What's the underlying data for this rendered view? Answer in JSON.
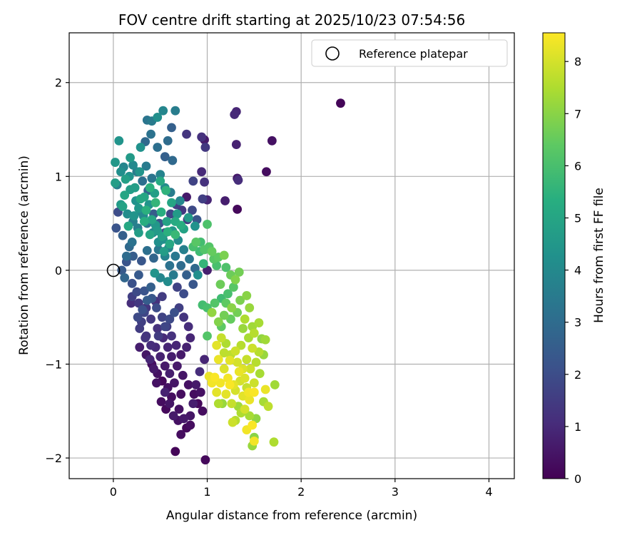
{
  "chart_data": {
    "type": "scatter",
    "title": "FOV centre drift starting at 2025/10/23 07:54:56",
    "xlabel": "Angular distance from reference (arcmin)",
    "ylabel": "Rotation from reference (arcmin)",
    "xlim": [
      -0.47,
      4.27
    ],
    "ylim": [
      -2.22,
      2.53
    ],
    "xticks": [
      0,
      1,
      2,
      3,
      4
    ],
    "xtick_labels": [
      "0",
      "1",
      "2",
      "3",
      "4"
    ],
    "yticks": [
      -2,
      -1,
      0,
      1,
      2
    ],
    "ytick_labels": [
      "−2",
      "−1",
      "0",
      "1",
      "2"
    ],
    "grid": true,
    "legend": {
      "position": "top-right",
      "entries": [
        "Reference platepar"
      ]
    },
    "colorbar": {
      "label": "Hours from first FF file",
      "colormap": "viridis",
      "range": [
        0,
        8.55
      ],
      "ticks": [
        0,
        1,
        2,
        3,
        4,
        5,
        6,
        7,
        8
      ],
      "tick_labels": [
        "0",
        "1",
        "2",
        "3",
        "4",
        "5",
        "6",
        "7",
        "8"
      ]
    },
    "reference_point": {
      "x": 0,
      "y": 0
    },
    "points": [
      [
        2.42,
        1.78,
        0.1
      ],
      [
        1.69,
        1.38,
        0.4
      ],
      [
        1.63,
        1.05,
        0.3
      ],
      [
        1.32,
        0.65,
        0.2
      ],
      [
        1.31,
        1.69,
        0.9
      ],
      [
        1.29,
        1.66,
        1.0
      ],
      [
        1.31,
        1.34,
        0.8
      ],
      [
        1.32,
        0.98,
        0.6
      ],
      [
        1.33,
        0.96,
        1.1
      ],
      [
        1.19,
        0.74,
        0.7
      ],
      [
        1.0,
        0.75,
        0.9
      ],
      [
        0.94,
        1.42,
        1.2
      ],
      [
        0.97,
        1.39,
        0.6
      ],
      [
        0.98,
        1.31,
        1.4
      ],
      [
        0.94,
        1.05,
        1.0
      ],
      [
        0.97,
        0.94,
        1.2
      ],
      [
        0.95,
        0.76,
        1.6
      ],
      [
        0.85,
        0.95,
        1.7
      ],
      [
        0.78,
        0.78,
        0.6
      ],
      [
        0.78,
        1.45,
        1.3
      ],
      [
        0.62,
        1.52,
        2.6
      ],
      [
        0.66,
        1.7,
        3.6
      ],
      [
        0.53,
        1.7,
        3.9
      ],
      [
        0.47,
        1.63,
        4.2
      ],
      [
        0.41,
        1.59,
        3.5
      ],
      [
        0.36,
        1.6,
        3.3
      ],
      [
        0.4,
        1.45,
        3.2
      ],
      [
        0.34,
        1.37,
        2.9
      ],
      [
        0.47,
        1.31,
        3.1
      ],
      [
        0.58,
        1.38,
        3.0
      ],
      [
        0.55,
        1.21,
        2.6
      ],
      [
        0.63,
        1.17,
        2.9
      ],
      [
        0.29,
        1.31,
        4.3
      ],
      [
        0.18,
        1.2,
        4.6
      ],
      [
        0.06,
        1.38,
        4.4
      ],
      [
        0.02,
        1.15,
        4.5
      ],
      [
        0.08,
        1.05,
        4.2
      ],
      [
        0.13,
        0.97,
        4.8
      ],
      [
        0.02,
        0.93,
        4.7
      ],
      [
        0.04,
        0.91,
        3.7
      ],
      [
        0.21,
        1.12,
        4.0
      ],
      [
        0.28,
        1.05,
        4.4
      ],
      [
        0.35,
        1.11,
        3.5
      ],
      [
        0.41,
        0.98,
        3.3
      ],
      [
        0.5,
        1.02,
        3.8
      ],
      [
        0.55,
        0.88,
        4.1
      ],
      [
        0.61,
        0.83,
        3.6
      ],
      [
        0.71,
        0.74,
        3.9
      ],
      [
        0.8,
        0.56,
        4.6
      ],
      [
        0.87,
        0.47,
        4.3
      ],
      [
        0.75,
        0.44,
        4.9
      ],
      [
        0.66,
        0.52,
        5.2
      ],
      [
        0.58,
        0.41,
        5.4
      ],
      [
        0.52,
        0.36,
        4.8
      ],
      [
        0.45,
        0.48,
        4.5
      ],
      [
        0.39,
        0.38,
        5.0
      ],
      [
        0.33,
        0.52,
        5.3
      ],
      [
        0.27,
        0.4,
        4.7
      ],
      [
        0.22,
        0.58,
        4.4
      ],
      [
        0.16,
        0.47,
        5.1
      ],
      [
        0.1,
        0.68,
        4.9
      ],
      [
        0.05,
        0.62,
        2.0
      ],
      [
        0.03,
        0.45,
        2.2
      ],
      [
        0.1,
        0.37,
        2.6
      ],
      [
        0.17,
        0.25,
        2.9
      ],
      [
        0.21,
        0.15,
        2.5
      ],
      [
        0.14,
        0.09,
        2.2
      ],
      [
        0.09,
        0.0,
        2.4
      ],
      [
        0.12,
        -0.08,
        2.8
      ],
      [
        0.2,
        -0.14,
        2.1
      ],
      [
        0.27,
        -0.05,
        2.4
      ],
      [
        0.3,
        0.1,
        2.3
      ],
      [
        0.36,
        0.21,
        3.1
      ],
      [
        0.43,
        0.13,
        2.8
      ],
      [
        0.48,
        0.22,
        3.4
      ],
      [
        0.55,
        0.15,
        3.8
      ],
      [
        0.6,
        0.05,
        3.2
      ],
      [
        0.64,
        -0.05,
        3.5
      ],
      [
        0.58,
        -0.12,
        4.1
      ],
      [
        0.5,
        -0.08,
        3.9
      ],
      [
        0.44,
        -0.03,
        4.4
      ],
      [
        0.4,
        -0.18,
        2.6
      ],
      [
        0.33,
        -0.22,
        2.2
      ],
      [
        0.25,
        -0.23,
        1.9
      ],
      [
        0.2,
        -0.28,
        1.6
      ],
      [
        0.27,
        -0.35,
        1.4
      ],
      [
        0.35,
        -0.4,
        1.3
      ],
      [
        0.45,
        -0.33,
        1.2
      ],
      [
        0.52,
        -0.28,
        1.5
      ],
      [
        0.68,
        -0.18,
        1.7
      ],
      [
        0.75,
        -0.25,
        2.0
      ],
      [
        0.85,
        -0.15,
        2.3
      ],
      [
        0.9,
        -0.05,
        4.2
      ],
      [
        0.96,
        0.07,
        5.6
      ],
      [
        1.0,
        0.0,
        0.7
      ],
      [
        1.0,
        0.49,
        6.1
      ],
      [
        0.92,
        0.2,
        5.8
      ],
      [
        0.85,
        0.25,
        6.0
      ],
      [
        0.88,
        0.3,
        6.3
      ],
      [
        1.02,
        0.25,
        6.2
      ],
      [
        1.05,
        0.2,
        6.5
      ],
      [
        1.12,
        0.14,
        6.4
      ],
      [
        1.18,
        0.16,
        6.8
      ],
      [
        1.2,
        0.03,
        6.1
      ],
      [
        1.25,
        -0.05,
        6.6
      ],
      [
        1.3,
        -0.1,
        6.9
      ],
      [
        1.34,
        -0.02,
        6.7
      ],
      [
        1.28,
        -0.18,
        6.3
      ],
      [
        1.22,
        -0.25,
        6.0
      ],
      [
        1.15,
        -0.3,
        5.8
      ],
      [
        1.08,
        -0.35,
        6.2
      ],
      [
        1.0,
        -0.4,
        6.0
      ],
      [
        0.95,
        -0.37,
        5.9
      ],
      [
        1.05,
        -0.45,
        7.1
      ],
      [
        1.12,
        -0.55,
        6.9
      ],
      [
        1.18,
        -0.48,
        6.7
      ],
      [
        1.25,
        -0.52,
        6.5
      ],
      [
        1.35,
        -0.32,
        6.8
      ],
      [
        1.42,
        -0.27,
        7.0
      ],
      [
        1.45,
        -0.4,
        7.2
      ],
      [
        1.4,
        -0.52,
        7.5
      ],
      [
        1.48,
        -0.6,
        7.3
      ],
      [
        1.55,
        -0.56,
        7.4
      ],
      [
        1.5,
        -0.67,
        7.6
      ],
      [
        1.58,
        -0.73,
        7.1
      ],
      [
        1.62,
        -0.74,
        7.3
      ],
      [
        1.6,
        -0.9,
        7.2
      ],
      [
        1.55,
        -0.87,
        7.6
      ],
      [
        1.48,
        -0.83,
        7.9
      ],
      [
        1.42,
        -0.95,
        7.8
      ],
      [
        1.38,
        -1.05,
        8.1
      ],
      [
        1.32,
        -0.98,
        8.0
      ],
      [
        1.25,
        -0.9,
        7.7
      ],
      [
        1.2,
        -0.78,
        7.5
      ],
      [
        1.15,
        -0.72,
        7.8
      ],
      [
        1.1,
        -0.8,
        8.2
      ],
      [
        1.12,
        -0.95,
        8.3
      ],
      [
        1.18,
        -1.05,
        8.1
      ],
      [
        1.22,
        -1.15,
        8.4
      ],
      [
        1.28,
        -1.22,
        8.2
      ],
      [
        1.35,
        -1.18,
        8.0
      ],
      [
        1.42,
        -1.25,
        7.8
      ],
      [
        1.5,
        -1.3,
        8.5
      ],
      [
        1.45,
        -1.38,
        8.3
      ],
      [
        1.4,
        -1.48,
        8.0
      ],
      [
        1.45,
        -1.55,
        7.4
      ],
      [
        1.52,
        -1.58,
        7.1
      ],
      [
        1.48,
        -1.65,
        8.5
      ],
      [
        1.42,
        -1.7,
        8.4
      ],
      [
        1.5,
        -1.78,
        7.0
      ],
      [
        1.48,
        -1.87,
        7.2
      ],
      [
        1.5,
        -1.82,
        8.4
      ],
      [
        1.71,
        -1.83,
        7.5
      ],
      [
        1.72,
        -1.22,
        7.3
      ],
      [
        1.62,
        -1.27,
        8.3
      ],
      [
        1.6,
        -1.4,
        7.4
      ],
      [
        1.65,
        -1.45,
        7.7
      ],
      [
        1.33,
        -1.45,
        7.3
      ],
      [
        1.3,
        -1.6,
        7.6
      ],
      [
        1.27,
        -1.62,
        7.9
      ],
      [
        1.16,
        -1.42,
        7.2
      ],
      [
        1.12,
        -1.42,
        7.5
      ],
      [
        1.1,
        -1.3,
        8.2
      ],
      [
        1.05,
        -1.2,
        8.4
      ],
      [
        1.02,
        -1.13,
        8.3
      ],
      [
        1.08,
        -1.14,
        8.5
      ],
      [
        1.15,
        -0.6,
        6.4
      ],
      [
        1.0,
        -0.7,
        6.2
      ],
      [
        0.97,
        -0.95,
        0.9
      ],
      [
        0.92,
        -1.08,
        1.1
      ],
      [
        0.95,
        -1.5,
        0.3
      ],
      [
        0.98,
        -2.02,
        0.2
      ],
      [
        0.66,
        -1.93,
        0.1
      ],
      [
        0.93,
        -1.3,
        0.4
      ],
      [
        0.88,
        -1.22,
        0.6
      ],
      [
        0.85,
        -1.42,
        0.7
      ],
      [
        0.82,
        -1.55,
        0.5
      ],
      [
        0.78,
        -1.68,
        0.2
      ],
      [
        0.72,
        -1.75,
        0.3
      ],
      [
        0.69,
        -1.6,
        0.4
      ],
      [
        0.64,
        -1.55,
        0.6
      ],
      [
        0.6,
        -1.42,
        0.5
      ],
      [
        0.55,
        -1.3,
        0.8
      ],
      [
        0.51,
        -1.4,
        0.3
      ],
      [
        0.46,
        -1.2,
        0.4
      ],
      [
        0.43,
        -1.05,
        0.6
      ],
      [
        0.39,
        -0.95,
        0.9
      ],
      [
        0.4,
        -0.8,
        1.1
      ],
      [
        0.35,
        -0.7,
        1.3
      ],
      [
        0.3,
        -0.55,
        1.6
      ],
      [
        0.33,
        -0.45,
        1.8
      ],
      [
        0.4,
        -0.52,
        1.4
      ],
      [
        0.47,
        -0.62,
        1.2
      ],
      [
        0.53,
        -0.72,
        1.0
      ],
      [
        0.58,
        -0.82,
        0.9
      ],
      [
        0.62,
        -0.92,
        0.7
      ],
      [
        0.68,
        -1.02,
        0.6
      ],
      [
        0.74,
        -1.12,
        0.5
      ],
      [
        0.8,
        -1.22,
        0.4
      ],
      [
        0.86,
        -1.32,
        0.3
      ],
      [
        0.9,
        -1.42,
        0.2
      ],
      [
        0.72,
        -1.32,
        0.3
      ],
      [
        0.65,
        -1.2,
        0.5
      ],
      [
        0.6,
        -1.1,
        0.7
      ],
      [
        0.55,
        -1.02,
        0.6
      ],
      [
        0.5,
        -0.92,
        0.8
      ],
      [
        0.45,
        -0.82,
        1.0
      ],
      [
        0.48,
        -0.7,
        1.5
      ],
      [
        0.55,
        -0.6,
        1.8
      ],
      [
        0.6,
        -0.52,
        1.9
      ],
      [
        0.65,
        -0.45,
        2.1
      ],
      [
        0.7,
        -0.4,
        1.6
      ],
      [
        0.75,
        -0.5,
        1.3
      ],
      [
        0.8,
        -0.6,
        1.1
      ],
      [
        0.82,
        -0.72,
        0.9
      ],
      [
        0.78,
        -0.82,
        0.8
      ],
      [
        0.72,
        -0.9,
        0.6
      ],
      [
        0.67,
        -0.8,
        0.9
      ],
      [
        0.62,
        -0.7,
        1.2
      ],
      [
        0.57,
        -0.6,
        1.5
      ],
      [
        0.52,
        -0.5,
        1.7
      ],
      [
        0.46,
        -0.4,
        2.0
      ],
      [
        0.41,
        -0.3,
        2.3
      ],
      [
        0.36,
        -0.32,
        2.5
      ],
      [
        0.31,
        -0.42,
        2.1
      ],
      [
        0.26,
        -0.5,
        1.9
      ],
      [
        0.28,
        -0.62,
        1.5
      ],
      [
        0.34,
        -0.72,
        1.3
      ],
      [
        0.28,
        -0.82,
        0.7
      ],
      [
        0.35,
        -0.9,
        0.5
      ],
      [
        0.41,
        -1.0,
        0.3
      ],
      [
        0.47,
        -1.1,
        0.4
      ],
      [
        0.52,
        -1.18,
        0.2
      ],
      [
        0.58,
        -1.25,
        0.4
      ],
      [
        0.62,
        -1.35,
        0.3
      ],
      [
        0.56,
        -1.48,
        0.2
      ],
      [
        0.7,
        -1.48,
        0.4
      ],
      [
        0.75,
        -1.58,
        0.6
      ],
      [
        0.82,
        -1.65,
        0.3
      ],
      [
        0.19,
        -0.35,
        1.1
      ],
      [
        0.14,
        0.15,
        3.0
      ],
      [
        0.2,
        0.3,
        3.2
      ],
      [
        0.26,
        0.45,
        3.6
      ],
      [
        0.32,
        0.58,
        4.0
      ],
      [
        0.38,
        0.7,
        4.4
      ],
      [
        0.44,
        0.82,
        4.8
      ],
      [
        0.5,
        0.95,
        5.2
      ],
      [
        0.56,
        0.85,
        5.5
      ],
      [
        0.62,
        0.72,
        5.0
      ],
      [
        0.68,
        0.6,
        4.6
      ],
      [
        0.72,
        0.48,
        5.3
      ],
      [
        0.66,
        0.38,
        5.7
      ],
      [
        0.6,
        0.28,
        5.1
      ],
      [
        0.54,
        0.2,
        4.7
      ],
      [
        0.48,
        0.3,
        4.2
      ],
      [
        0.42,
        0.4,
        3.8
      ],
      [
        0.36,
        0.5,
        3.4
      ],
      [
        0.3,
        0.62,
        3.9
      ],
      [
        0.24,
        0.74,
        4.3
      ],
      [
        0.18,
        0.86,
        4.7
      ],
      [
        0.12,
        0.8,
        5.0
      ],
      [
        0.08,
        0.7,
        4.6
      ],
      [
        0.15,
        0.6,
        4.1
      ],
      [
        0.21,
        0.52,
        3.7
      ],
      [
        0.27,
        0.66,
        4.5
      ],
      [
        0.33,
        0.78,
        5.0
      ],
      [
        0.39,
        0.88,
        5.4
      ],
      [
        0.45,
        0.72,
        5.6
      ],
      [
        0.51,
        0.62,
        5.3
      ],
      [
        0.57,
        0.52,
        4.9
      ],
      [
        0.63,
        0.42,
        4.5
      ],
      [
        0.69,
        0.32,
        4.1
      ],
      [
        0.75,
        0.22,
        3.7
      ],
      [
        0.81,
        0.12,
        3.3
      ],
      [
        0.87,
        0.02,
        2.9
      ],
      [
        0.78,
        -0.05,
        2.6
      ],
      [
        0.72,
        0.05,
        3.0
      ],
      [
        0.66,
        0.15,
        3.4
      ],
      [
        0.59,
        0.24,
        3.8
      ],
      [
        0.53,
        0.33,
        4.2
      ],
      [
        0.47,
        0.42,
        4.6
      ],
      [
        0.41,
        0.54,
        5.0
      ],
      [
        0.35,
        0.64,
        5.4
      ],
      [
        0.29,
        0.76,
        5.1
      ],
      [
        0.23,
        0.88,
        4.7
      ],
      [
        0.17,
        1.0,
        4.3
      ],
      [
        0.11,
        1.1,
        3.9
      ],
      [
        0.25,
        1.05,
        3.5
      ],
      [
        0.31,
        0.95,
        3.1
      ],
      [
        0.37,
        0.85,
        2.8
      ],
      [
        0.43,
        0.6,
        2.5
      ],
      [
        0.49,
        0.5,
        2.2
      ],
      [
        0.55,
        0.4,
        2.0
      ],
      [
        0.61,
        0.6,
        1.8
      ],
      [
        0.67,
        0.7,
        1.6
      ],
      [
        0.73,
        0.64,
        1.4
      ],
      [
        0.79,
        0.54,
        1.5
      ],
      [
        0.84,
        0.64,
        1.9
      ],
      [
        0.89,
        0.54,
        2.3
      ],
      [
        0.93,
        0.3,
        5.9
      ],
      [
        0.97,
        0.22,
        6.2
      ],
      [
        1.07,
        0.12,
        6.3
      ],
      [
        1.1,
        0.05,
        6.0
      ],
      [
        1.14,
        -0.15,
        6.6
      ],
      [
        1.2,
        -0.35,
        6.4
      ],
      [
        1.26,
        -0.4,
        7.0
      ],
      [
        1.32,
        -0.45,
        6.7
      ],
      [
        1.38,
        -0.62,
        7.2
      ],
      [
        1.44,
        -0.72,
        7.4
      ],
      [
        1.36,
        -0.8,
        7.6
      ],
      [
        1.3,
        -0.86,
        7.9
      ],
      [
        1.24,
        -0.96,
        8.2
      ],
      [
        1.18,
        -0.88,
        7.7
      ],
      [
        1.34,
        -1.08,
        8.3
      ],
      [
        1.4,
        -1.15,
        8.1
      ],
      [
        1.46,
        -1.05,
        7.9
      ],
      [
        1.52,
        -0.98,
        7.6
      ],
      [
        1.56,
        -1.1,
        7.4
      ],
      [
        1.5,
        -1.2,
        7.9
      ],
      [
        1.44,
        -1.3,
        8.4
      ],
      [
        1.38,
        -1.34,
        8.2
      ],
      [
        1.3,
        -1.28,
        8.0
      ],
      [
        1.24,
        -1.22,
        8.5
      ],
      [
        1.2,
        -1.32,
        8.2
      ],
      [
        1.14,
        -1.2,
        8.4
      ],
      [
        1.26,
        -1.42,
        7.8
      ],
      [
        1.36,
        -1.52,
        7.5
      ]
    ]
  }
}
